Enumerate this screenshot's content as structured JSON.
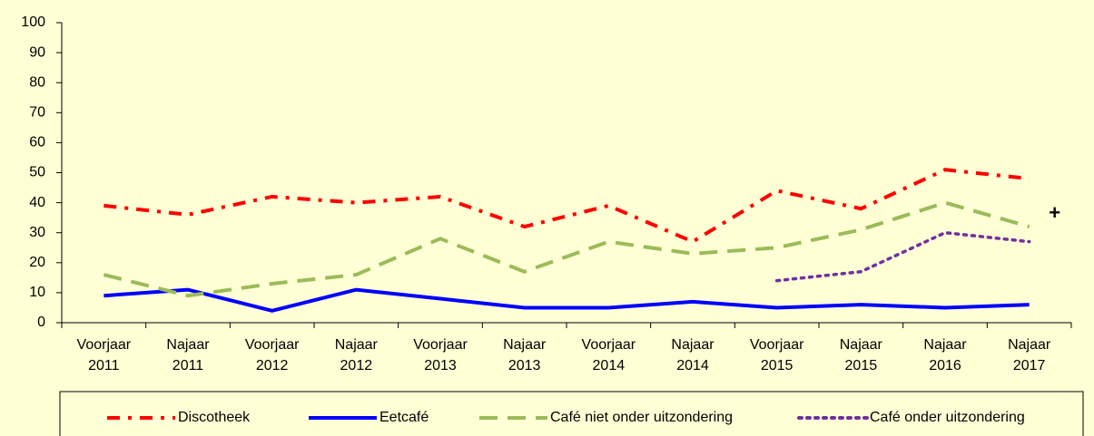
{
  "chart_data": {
    "type": "line",
    "categories": [
      [
        "Voorjaar",
        "2011"
      ],
      [
        "Najaar",
        "2011"
      ],
      [
        "Voorjaar",
        "2012"
      ],
      [
        "Najaar",
        "2012"
      ],
      [
        "Voorjaar",
        "2013"
      ],
      [
        "Najaar",
        "2013"
      ],
      [
        "Voorjaar",
        "2014"
      ],
      [
        "Najaar",
        "2014"
      ],
      [
        "Voorjaar",
        "2015"
      ],
      [
        "Najaar",
        "2015"
      ],
      [
        "Najaar",
        "2016"
      ],
      [
        "Najaar",
        "2017"
      ]
    ],
    "series": [
      {
        "name": "Discotheek",
        "color": "#ff0000",
        "dash": "dash-dot",
        "values": [
          39,
          36,
          42,
          40,
          42,
          32,
          39,
          27,
          44,
          38,
          51,
          48
        ]
      },
      {
        "name": "Eetcafé",
        "color": "#0000ff",
        "dash": "solid",
        "values": [
          9,
          11,
          4,
          11,
          8,
          5,
          5,
          7,
          5,
          6,
          5,
          6
        ]
      },
      {
        "name": "Café niet onder uitzondering",
        "color": "#9bbb59",
        "dash": "dash",
        "values": [
          16,
          9,
          13,
          16,
          28,
          17,
          27,
          23,
          25,
          31,
          40,
          32
        ]
      },
      {
        "name": "Café onder uitzondering",
        "color": "#7030a0",
        "dash": "dot",
        "values": [
          null,
          null,
          null,
          null,
          null,
          null,
          null,
          null,
          14,
          17,
          30,
          27
        ]
      }
    ],
    "annotation": {
      "text": "+",
      "color": "#9bbb59"
    },
    "ylim": [
      0,
      100
    ],
    "yticks": [
      0,
      10,
      20,
      30,
      40,
      50,
      60,
      70,
      80,
      90,
      100
    ],
    "legend": "bottom"
  }
}
